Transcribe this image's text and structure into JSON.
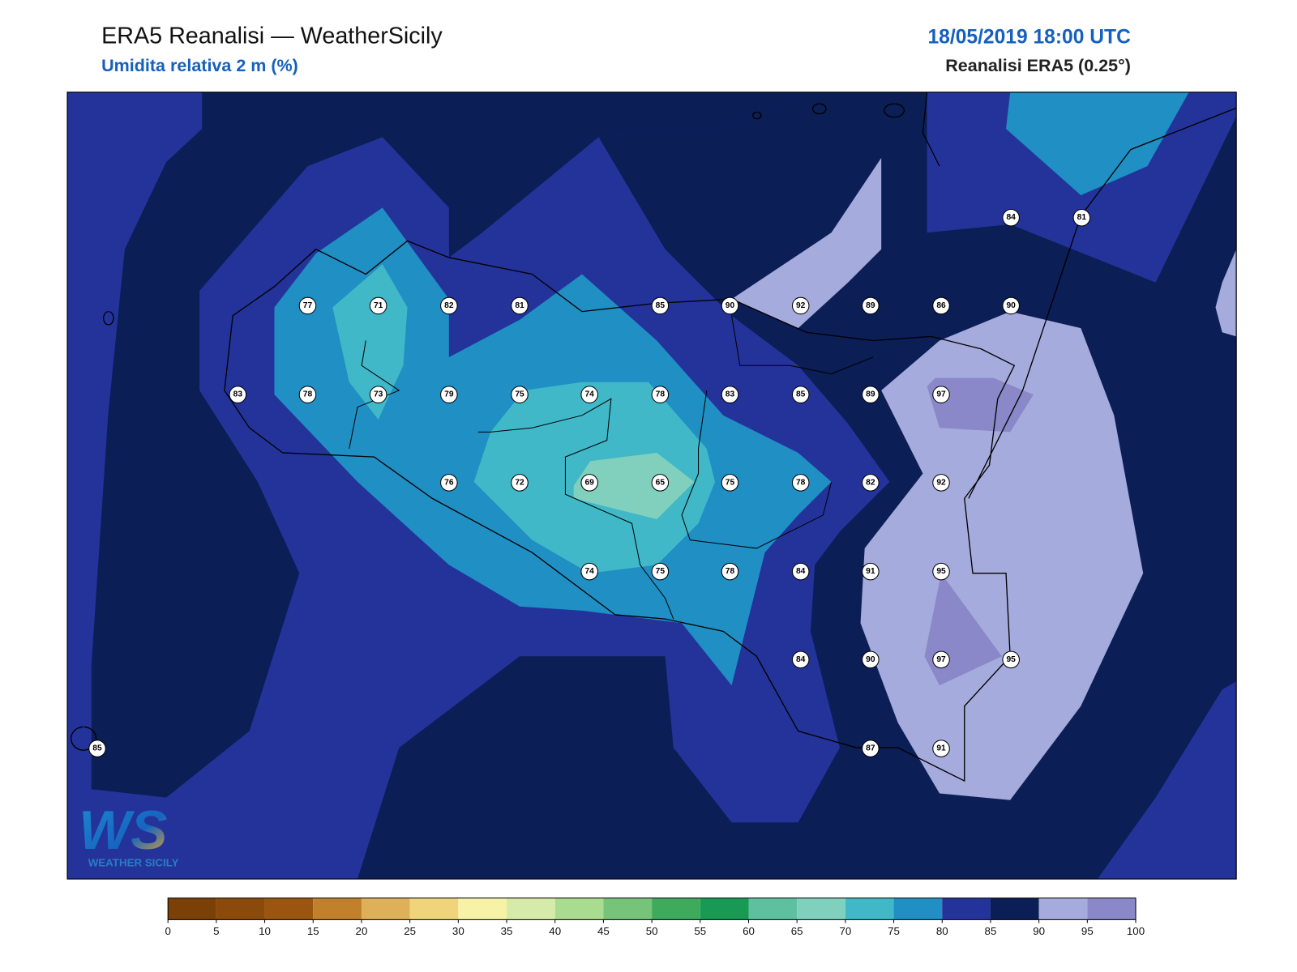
{
  "header": {
    "title": "ERA5 Reanalisi — WeatherSicily",
    "subtitle": "Umidita relativa 2 m (%)",
    "datetime": "18/05/2019 18:00 UTC",
    "source": "Reanalisi ERA5 (0.25°)"
  },
  "logo": {
    "mark": "WS",
    "text": "WEATHER SICILY"
  },
  "stations": {
    "values": [
      85,
      77,
      71,
      82,
      81,
      85,
      90,
      92,
      89,
      86,
      90,
      84,
      81,
      83,
      78,
      73,
      79,
      75,
      74,
      78,
      83,
      85,
      89,
      97,
      76,
      72,
      69,
      65,
      75,
      78,
      82,
      92,
      74,
      75,
      78,
      84,
      91,
      95,
      84,
      90,
      97,
      95,
      87,
      91
    ]
  },
  "colorbar": {
    "ticks": [
      0,
      5,
      10,
      15,
      20,
      25,
      30,
      35,
      40,
      45,
      50,
      55,
      60,
      65,
      70,
      75,
      80,
      85,
      90,
      95,
      100
    ],
    "colors": [
      "#7a4007",
      "#8a4a0b",
      "#9a5510",
      "#c0802c",
      "#dfb05a",
      "#f0d47c",
      "#f6f3a8",
      "#d6ebaa",
      "#a9dc8e",
      "#76c47a",
      "#3fa95c",
      "#189a55",
      "#5fc0a0",
      "#80d0bd",
      "#40b8c8",
      "#1f8fc4",
      "#24339a",
      "#0b1e56",
      "#a5abdc",
      "#8a88c8"
    ]
  }
}
